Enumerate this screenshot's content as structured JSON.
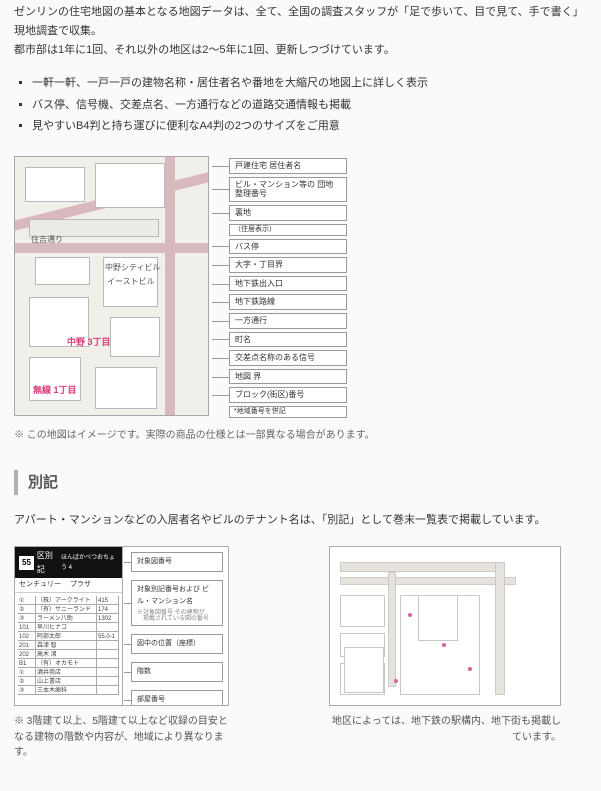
{
  "intro": {
    "line1": "ゼンリンの住宅地図の基本となる地図データは、全て、全国の調査スタッフが「足で歩いて、目で見て、手で書く」現地調査で収集。",
    "line2": "都市部は1年に1回、それ以外の地区は2〜5年に1回、更新しつづけています。"
  },
  "bullets": [
    "一軒一軒、一戸一戸の建物名称・居住者名や番地を大縮尺の地図上に詳しく表示",
    "バス停、信号機、交差点名、一方通行などの道路交通情報も掲載",
    "見やすいB4判と持ち運びに便利なA4判の2つのサイズをご用意"
  ],
  "mainFigure": {
    "mapInner": {
      "street1": "住吉通り",
      "bldg3": "中野シティビル",
      "bldg5": "イーストビル",
      "pink1": "中野 3丁目",
      "pink2": "無線 1丁目"
    },
    "legendTags": [
      {
        "label": "戸建住宅\n居住者名"
      },
      {
        "label": "ビル・マンション等の\n団地整理番号"
      },
      {
        "label": "裏地",
        "sub": "（住居表示）"
      },
      {
        "label": "バス停"
      },
      {
        "label": "大字・丁目界"
      },
      {
        "label": "地下鉄出入口"
      },
      {
        "label": "地下鉄路線"
      },
      {
        "label": "一方通行"
      },
      {
        "label": "町名"
      },
      {
        "label": "交差点名称のある信号"
      },
      {
        "label": "地図 界"
      },
      {
        "label": "ブロック(街区)番号",
        "sub": "*地域番号を併記"
      }
    ],
    "note": "※ この地図はイメージです。実際の商品の仕様とは一部異なる場合があります。"
  },
  "appendix": {
    "heading": "別記",
    "lead": "アパート・マンションなどの入居者名やビルのテナント名は、「別記」として巻末一覧表で掲載しています。",
    "leftFig": {
      "headerNum": "55",
      "headerTitle": "区別記",
      "headerSub": "ほんばかべつおちょう  4",
      "row1a": "センチュリー",
      "row1b": "プラザ",
      "row2": "国際ハイツ",
      "row3": "橋上ビル",
      "gridRows": [
        [
          "①",
          "（株）アークライト",
          "415"
        ],
        [
          "②",
          "（有）サニーランド",
          "174"
        ],
        [
          "③",
          "ラーメン八助",
          "1302"
        ],
        [
          "101",
          "早川ヒナコ",
          ""
        ],
        [
          "102",
          "阿部太郎",
          "55.0-1"
        ],
        [
          "201",
          "森津 智",
          ""
        ],
        [
          "202",
          "高木 渚",
          ""
        ],
        [
          "B1",
          "（有）オカモト",
          ""
        ],
        [
          "①",
          "酒井商店",
          ""
        ],
        [
          "②",
          "山上書店",
          ""
        ],
        [
          "③",
          "三本木歯科",
          ""
        ]
      ],
      "rTags": [
        {
          "label": "対象図番号"
        },
        {
          "label": "対象別記番号および\nビル・マンション名",
          "sublines": "※対象図番号:その建物が\n　掲載されている図の番号"
        },
        {
          "label": "図中の位置（座標）"
        },
        {
          "label": "階数"
        },
        {
          "label": "部屋番号"
        },
        {
          "label": "棟名番号"
        }
      ],
      "caption": "※ 3階建て以上、5階建て以上など収録の目安となる建物の階数や内容が、地域により異なります。"
    },
    "rightFig": {
      "caption": "地区によっては、地下鉄の駅構内、地下街も掲載しています。"
    }
  },
  "colors": {
    "accent_pink": "#d63e7d",
    "border_gray": "#a8a8a8",
    "text": "#333333"
  }
}
